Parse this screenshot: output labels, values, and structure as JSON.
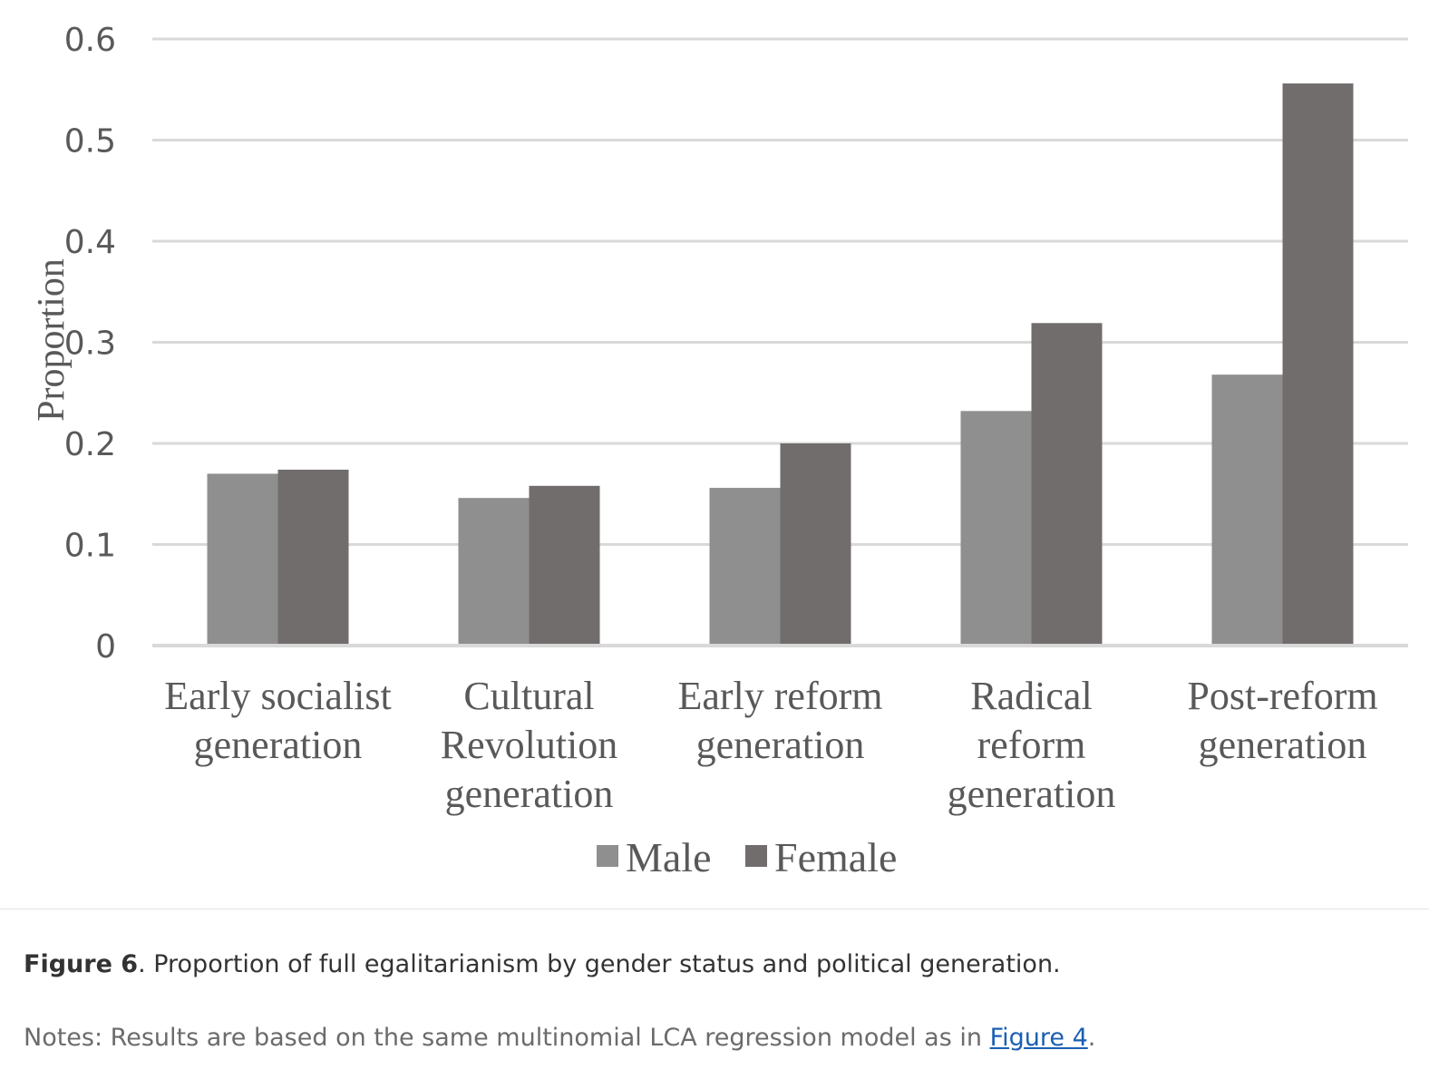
{
  "chart_data": {
    "type": "bar",
    "categories": [
      [
        "Early socialist",
        "generation"
      ],
      [
        "Cultural",
        "Revolution",
        "generation"
      ],
      [
        "Early reform",
        "generation"
      ],
      [
        "Radical",
        "reform",
        "generation"
      ],
      [
        "Post-reform",
        "generation"
      ]
    ],
    "series": [
      {
        "name": "Male",
        "color": "#8f8f8f",
        "values": [
          0.17,
          0.146,
          0.156,
          0.232,
          0.268
        ]
      },
      {
        "name": "Female",
        "color": "#716d6c",
        "values": [
          0.174,
          0.158,
          0.2,
          0.319,
          0.556
        ]
      }
    ],
    "ylabel": "Proportion",
    "ylim": [
      0,
      0.6
    ],
    "yticks": [
      "0",
      "0.1",
      "0.2",
      "0.3",
      "0.4",
      "0.5",
      "0.6"
    ],
    "grid": true,
    "legend": "bottom"
  },
  "caption": {
    "label": "Figure 6",
    "text": ". Proportion of full egalitarianism by gender status and political generation."
  },
  "notes": {
    "text": "Notes: Results are based on the same multinomial LCA regression model as in ",
    "link_text": "Figure 4",
    "end": "."
  }
}
